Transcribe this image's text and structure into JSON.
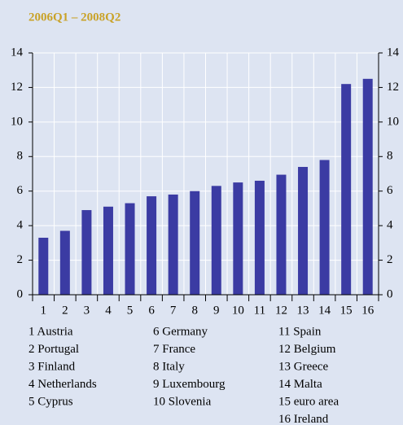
{
  "chart_data": {
    "type": "bar",
    "title": "2006Q1 – 2008Q2",
    "categories": [
      "1",
      "2",
      "3",
      "4",
      "5",
      "6",
      "7",
      "8",
      "9",
      "10",
      "11",
      "12",
      "13",
      "14",
      "15",
      "16"
    ],
    "values": [
      3.3,
      3.7,
      4.9,
      5.1,
      5.3,
      5.7,
      5.8,
      6.0,
      6.3,
      6.5,
      6.6,
      6.95,
      7.4,
      7.8,
      12.2,
      12.5
    ],
    "color": "#3b3ba3",
    "ylim": [
      0,
      14
    ],
    "yticks": [
      0,
      2,
      4,
      6,
      8,
      10,
      12,
      14
    ],
    "y2ticks": [
      0,
      2,
      4,
      6,
      8,
      10,
      12,
      14
    ],
    "grid": true,
    "legend_items": [
      "1 Austria",
      "2 Portugal",
      "3 Finland",
      "4 Netherlands",
      "5 Cyprus",
      "6 Germany",
      "7 France",
      "8 Italy",
      "9 Luxembourg",
      "10 Slovenia",
      "11 Spain",
      "12 Belgium",
      "13 Greece",
      "14 Malta",
      "15 euro area",
      "16 Ireland"
    ]
  }
}
